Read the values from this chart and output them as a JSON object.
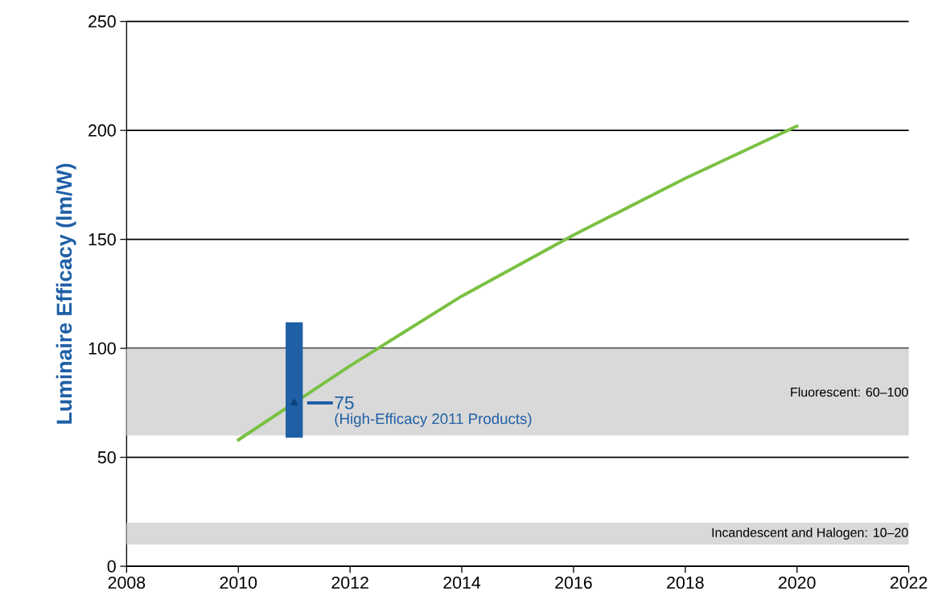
{
  "chart_data": {
    "type": "line",
    "ylabel": "Luminaire Efficacy (lm/W)",
    "xlim": [
      2008,
      2022
    ],
    "xticks": [
      2008,
      2010,
      2012,
      2014,
      2016,
      2018,
      2020,
      2022
    ],
    "ylim": [
      0,
      250
    ],
    "yticks": [
      0,
      50,
      100,
      150,
      200,
      250
    ],
    "grid": "y",
    "marker": "none",
    "line_style": "solid",
    "series": [
      {
        "color": "#7ac143",
        "x": [
          2010,
          2012,
          2014,
          2016,
          2018,
          2020
        ],
        "values": [
          58,
          92,
          124,
          152,
          178,
          202
        ]
      },
      {
        "type": "bar",
        "color": "#1f5fa6",
        "x": [
          2011
        ],
        "base": [
          59
        ],
        "values": [
          53
        ]
      },
      {
        "type": "scatter",
        "color": "#0d3f7a",
        "marker": "triangle",
        "x": [
          2011
        ],
        "values": [
          75
        ]
      }
    ],
    "bands": [
      {
        "axis": "y",
        "from": 60,
        "to": 100,
        "label": "Fluorescent: 60–100",
        "color": "#d9d9d9"
      },
      {
        "axis": "y",
        "from": 10,
        "to": 20,
        "label": "Incandescent and Halogen: 10–20",
        "color": "#d9d9d9"
      }
    ],
    "annotations": [
      {
        "text": "75",
        "x": 2011,
        "y": 75
      },
      "(High-Efficacy 2011 Products)"
    ]
  }
}
